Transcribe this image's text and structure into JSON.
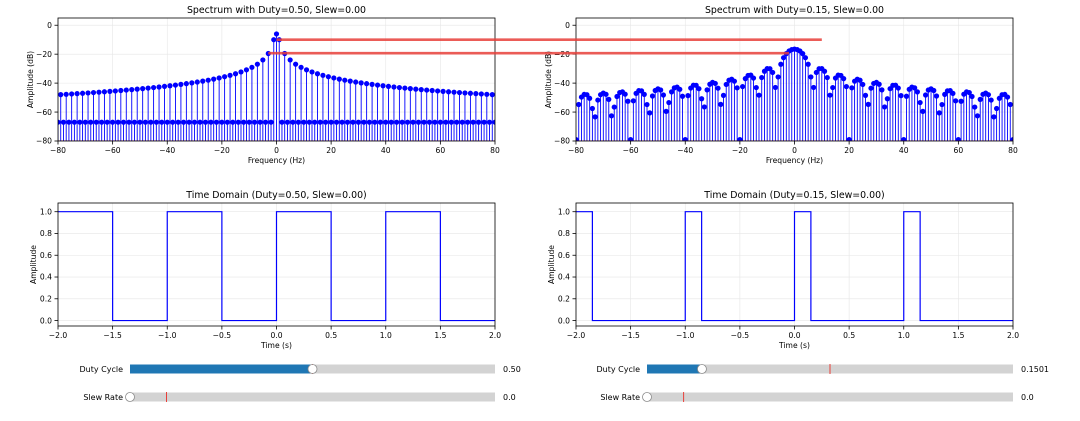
{
  "chart_data": [
    {
      "id": "spec1",
      "type": "stem",
      "title": "Spectrum with Duty=0.50, Slew=0.00",
      "xlabel": "Frequency (Hz)",
      "ylabel": "Amplitude (dB)",
      "xlim": [
        -80,
        80
      ],
      "ylim": [
        -80,
        5
      ],
      "xticks": [
        -80,
        -60,
        -40,
        -20,
        0,
        20,
        40,
        60,
        80
      ],
      "yticks": [
        -80,
        -60,
        -40,
        -20,
        0
      ],
      "series_color": "#0000ff",
      "grid": true,
      "duty": 0.5,
      "dc_level": -6,
      "odd_harmonic_peak": -10,
      "even_harmonic_floor": -67,
      "spacing": 1
    },
    {
      "id": "spec2",
      "type": "stem",
      "title": "Spectrum with Duty=0.15, Slew=0.00",
      "xlabel": "Frequency (Hz)",
      "ylabel": "Amplitude (dB)",
      "xlim": [
        -80,
        80
      ],
      "ylim": [
        -80,
        5
      ],
      "xticks": [
        -80,
        -60,
        -40,
        -20,
        0,
        20,
        40,
        60,
        80
      ],
      "yticks": [
        -80,
        -60,
        -40,
        -20,
        0
      ],
      "series_color": "#0000ff",
      "grid": true,
      "duty": 0.15,
      "peak_level": -16.5,
      "spacing": 1
    },
    {
      "id": "time1",
      "type": "line",
      "title": "Time Domain (Duty=0.50, Slew=0.00)",
      "xlabel": "Time (s)",
      "ylabel": "Amplitude",
      "xlim": [
        -2.0,
        2.0
      ],
      "ylim": [
        -0.05,
        1.08
      ],
      "xticks": [
        -2.0,
        -1.5,
        -1.0,
        -0.5,
        0.0,
        0.5,
        1.0,
        1.5,
        2.0
      ],
      "yticks": [
        0.0,
        0.2,
        0.4,
        0.6,
        0.8,
        1.0
      ],
      "series_color": "#0000ff",
      "grid": true,
      "period": 1.0,
      "duty": 0.5
    },
    {
      "id": "time2",
      "type": "line",
      "title": "Time Domain (Duty=0.15, Slew=0.00)",
      "xlabel": "Time (s)",
      "ylabel": "Amplitude",
      "xlim": [
        -2.0,
        2.0
      ],
      "ylim": [
        -0.05,
        1.08
      ],
      "xticks": [
        -2.0,
        -1.5,
        -1.0,
        -0.5,
        0.0,
        0.5,
        1.0,
        1.5,
        2.0
      ],
      "yticks": [
        0.0,
        0.2,
        0.4,
        0.6,
        0.8,
        1.0
      ],
      "series_color": "#0000ff",
      "grid": true,
      "period": 1.0,
      "duty": 0.15
    }
  ],
  "annotations": {
    "line_color": "#e8403a",
    "lines": [
      {
        "from_chart": "spec1",
        "from": [
          0,
          -10
        ],
        "to_chart": "spec2",
        "to": [
          10,
          -10
        ]
      },
      {
        "from_chart": "spec1",
        "from": [
          -3,
          -19.3
        ],
        "to_chart": "spec2",
        "to": [
          -2,
          -19.3
        ]
      }
    ]
  },
  "sliders": {
    "track_color": "#d3d3d3",
    "fill_color": "#1f77b4",
    "marker_color": "#e8403a",
    "items": [
      {
        "label": "Duty Cycle",
        "value_text": "0.50",
        "value": 0.5,
        "min": 0,
        "max": 1,
        "init": 0.5,
        "group": 0
      },
      {
        "label": "Slew Rate",
        "value_text": "0.0",
        "value": 0.0,
        "min": 0,
        "max": 1,
        "init": 0.1,
        "group": 0
      },
      {
        "label": "Duty Cycle",
        "value_text": "0.1501",
        "value": 0.1501,
        "min": 0,
        "max": 1,
        "init": 0.5,
        "group": 1
      },
      {
        "label": "Slew Rate",
        "value_text": "0.0",
        "value": 0.0,
        "min": 0,
        "max": 1,
        "init": 0.1,
        "group": 1
      }
    ]
  }
}
